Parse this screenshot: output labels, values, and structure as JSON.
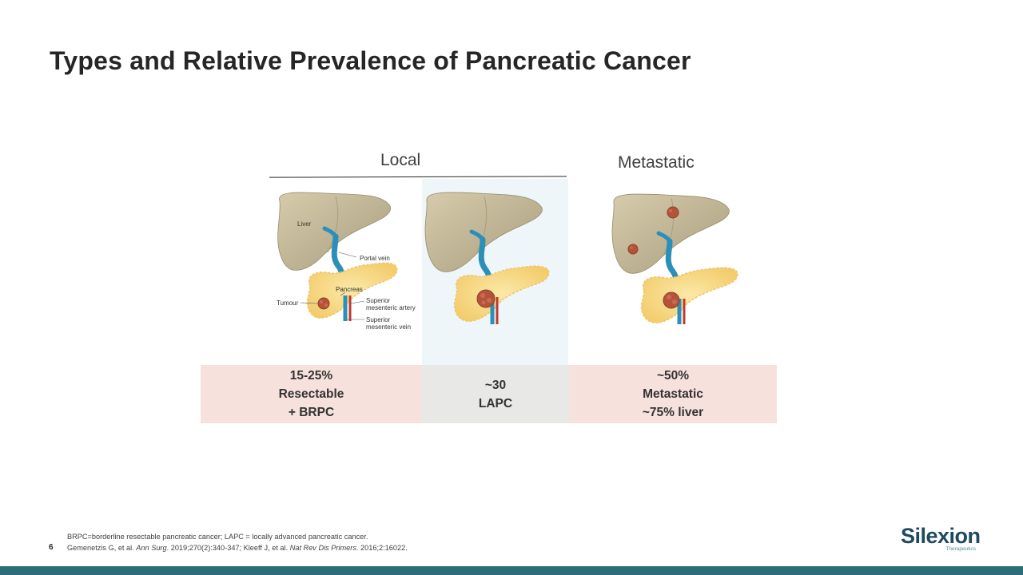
{
  "title": "Types and Relative Prevalence of Pancreatic Cancer",
  "groups": {
    "local": "Local",
    "metastatic": "Metastatic"
  },
  "anatomy_labels": {
    "liver": "Liver",
    "portal_vein": "Portal vein",
    "pancreas": "Pancreas",
    "tumour": "Tumour",
    "sma_line1": "Superior",
    "sma_line2": "mesenteric artery",
    "smv_line1": "Superior",
    "smv_line2": "mesenteric vein"
  },
  "categories": [
    {
      "lines": [
        "15-25%",
        "Resectable",
        "+ BRPC"
      ]
    },
    {
      "lines": [
        "~30",
        "LAPC"
      ]
    },
    {
      "lines": [
        "~50%",
        "Metastatic",
        "~75% liver"
      ]
    }
  ],
  "colors": {
    "title": "#262626",
    "resectable_cell": "#f7e1dd",
    "lapc_cell": "#e8e8e6",
    "lapc_highlight": "#eef6f9",
    "liver": "#c8bd9c",
    "pancreas": "#f8dc8c",
    "portal_vein": "#2b8fb8",
    "artery": "#c0392b",
    "tumour": "#b5533a",
    "bottom_bar": "#2a6e78",
    "logo": "#1f4a5e"
  },
  "page_number": "6",
  "footnotes": {
    "line1": "BRPC=borderline resectable pancreatic cancer; LAPC = locally advanced pancreatic cancer.",
    "line2_a": "Gemenetzis G, et al. ",
    "line2_b": "Ann Surg",
    "line2_c": ". 2019;270(2):340-347;  Kleeff J, et al. ",
    "line2_d": "Nat Rev Dis Primers",
    "line2_e": ". 2016;2:16022."
  },
  "logo": {
    "name": "Silexion",
    "tagline": "Therapeutics"
  }
}
